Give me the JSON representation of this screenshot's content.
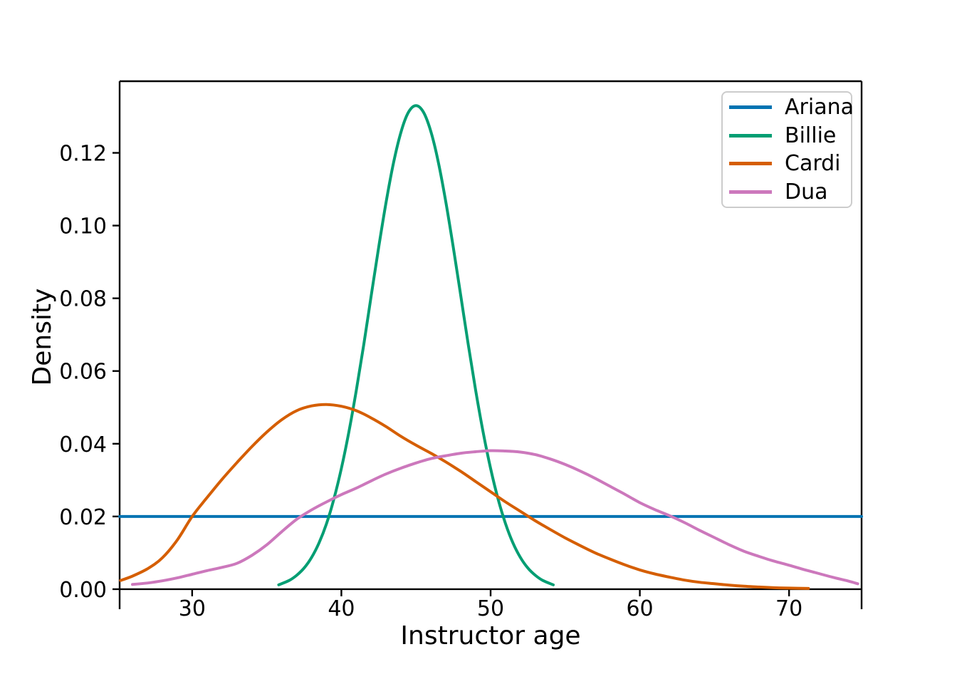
{
  "figure": {
    "background": "#ffffff"
  },
  "chart_data": {
    "type": "line",
    "title": "",
    "xlabel": "Instructor age",
    "ylabel": "Density",
    "xlim": [
      25.14,
      74.86
    ],
    "ylim": [
      -0.0055,
      0.1397
    ],
    "grid": false,
    "legend_position": "upper right",
    "x_ticks": [
      30,
      40,
      50,
      60,
      70
    ],
    "y_ticks": [
      {
        "v": 0.0,
        "label": "0.00"
      },
      {
        "v": 0.02,
        "label": "0.02"
      },
      {
        "v": 0.04,
        "label": "0.04"
      },
      {
        "v": 0.06,
        "label": "0.06"
      },
      {
        "v": 0.08,
        "label": "0.08"
      },
      {
        "v": 0.1,
        "label": "0.10"
      },
      {
        "v": 0.12,
        "label": "0.12"
      }
    ],
    "series": [
      {
        "name": "Ariana",
        "color": "#0173b2",
        "shape": "uniform",
        "points": [
          [
            25.14,
            0.02
          ],
          [
            74.86,
            0.02
          ]
        ]
      },
      {
        "name": "Billie",
        "color": "#029e73",
        "shape": "normal(mean=45, sd=3)",
        "points": [
          [
            35.8,
            0.0012
          ],
          [
            36.5,
            0.0024
          ],
          [
            37,
            0.0038
          ],
          [
            37.5,
            0.0058
          ],
          [
            38,
            0.0087
          ],
          [
            38.5,
            0.0127
          ],
          [
            39,
            0.018
          ],
          [
            39.5,
            0.0248
          ],
          [
            40,
            0.0332
          ],
          [
            40.5,
            0.0432
          ],
          [
            41,
            0.0547
          ],
          [
            41.5,
            0.0673
          ],
          [
            42,
            0.0807
          ],
          [
            42.5,
            0.094
          ],
          [
            43,
            0.1065
          ],
          [
            43.5,
            0.1174
          ],
          [
            44,
            0.1258
          ],
          [
            44.5,
            0.1312
          ],
          [
            45,
            0.133
          ],
          [
            45.5,
            0.1312
          ],
          [
            46,
            0.1258
          ],
          [
            46.5,
            0.1174
          ],
          [
            47,
            0.1065
          ],
          [
            47.5,
            0.094
          ],
          [
            48,
            0.0807
          ],
          [
            48.5,
            0.0673
          ],
          [
            49,
            0.0547
          ],
          [
            49.5,
            0.0432
          ],
          [
            50,
            0.0332
          ],
          [
            50.5,
            0.0248
          ],
          [
            51,
            0.018
          ],
          [
            51.5,
            0.0127
          ],
          [
            52,
            0.0087
          ],
          [
            52.5,
            0.0058
          ],
          [
            53,
            0.0038
          ],
          [
            53.5,
            0.0024
          ],
          [
            54.2,
            0.0012
          ]
        ]
      },
      {
        "name": "Cardi",
        "color": "#d55e00",
        "shape": "right-skewed, mode 39, peak 0.051",
        "points": [
          [
            25.2,
            0.0024
          ],
          [
            26,
            0.0036
          ],
          [
            27,
            0.0056
          ],
          [
            28,
            0.0086
          ],
          [
            29,
            0.0135
          ],
          [
            30,
            0.02
          ],
          [
            31,
            0.0252
          ],
          [
            32,
            0.0302
          ],
          [
            33,
            0.0348
          ],
          [
            34,
            0.0392
          ],
          [
            35,
            0.0432
          ],
          [
            36,
            0.0466
          ],
          [
            37,
            0.0491
          ],
          [
            38,
            0.0504
          ],
          [
            39,
            0.0508
          ],
          [
            40,
            0.0503
          ],
          [
            41,
            0.0491
          ],
          [
            42,
            0.0471
          ],
          [
            43,
            0.0447
          ],
          [
            44,
            0.042
          ],
          [
            45,
            0.0396
          ],
          [
            46,
            0.0374
          ],
          [
            47,
            0.035
          ],
          [
            48,
            0.0324
          ],
          [
            49,
            0.0296
          ],
          [
            50,
            0.0268
          ],
          [
            51,
            0.024
          ],
          [
            52,
            0.0214
          ],
          [
            53,
            0.0188
          ],
          [
            54,
            0.0164
          ],
          [
            55,
            0.0141
          ],
          [
            56,
            0.012
          ],
          [
            57,
            0.01
          ],
          [
            58,
            0.0083
          ],
          [
            59,
            0.0067
          ],
          [
            60,
            0.0053
          ],
          [
            61,
            0.0042
          ],
          [
            62,
            0.0033
          ],
          [
            63,
            0.0025
          ],
          [
            64,
            0.0019
          ],
          [
            65,
            0.0015
          ],
          [
            66,
            0.0011
          ],
          [
            67,
            0.0008
          ],
          [
            68,
            0.0006
          ],
          [
            69,
            0.0004
          ],
          [
            70,
            0.0003
          ],
          [
            71.3,
            0.0002
          ]
        ]
      },
      {
        "name": "Dua",
        "color": "#cc78bc",
        "shape": "broad, mode 50, peak 0.038",
        "points": [
          [
            26,
            0.0013
          ],
          [
            27,
            0.0017
          ],
          [
            28,
            0.0023
          ],
          [
            29,
            0.0031
          ],
          [
            30,
            0.0041
          ],
          [
            31,
            0.0051
          ],
          [
            32,
            0.006
          ],
          [
            33,
            0.0071
          ],
          [
            34,
            0.0093
          ],
          [
            35,
            0.0122
          ],
          [
            36,
            0.0158
          ],
          [
            37,
            0.0192
          ],
          [
            38,
            0.0218
          ],
          [
            39,
            0.024
          ],
          [
            40,
            0.026
          ],
          [
            41,
            0.0278
          ],
          [
            42,
            0.0298
          ],
          [
            43,
            0.0317
          ],
          [
            44,
            0.0333
          ],
          [
            45,
            0.0347
          ],
          [
            46,
            0.0359
          ],
          [
            47,
            0.0367
          ],
          [
            48,
            0.0374
          ],
          [
            49,
            0.0378
          ],
          [
            50,
            0.0381
          ],
          [
            51,
            0.038
          ],
          [
            52,
            0.0377
          ],
          [
            53,
            0.037
          ],
          [
            54,
            0.0358
          ],
          [
            55,
            0.0343
          ],
          [
            56,
            0.0325
          ],
          [
            57,
            0.0305
          ],
          [
            58,
            0.0283
          ],
          [
            59,
            0.0261
          ],
          [
            60,
            0.0238
          ],
          [
            61,
            0.0219
          ],
          [
            62,
            0.0202
          ],
          [
            63,
            0.0183
          ],
          [
            64,
            0.0162
          ],
          [
            65,
            0.0142
          ],
          [
            66,
            0.0122
          ],
          [
            67,
            0.0104
          ],
          [
            68,
            0.009
          ],
          [
            69,
            0.0077
          ],
          [
            70,
            0.0066
          ],
          [
            71,
            0.0054
          ],
          [
            72,
            0.0043
          ],
          [
            73,
            0.0032
          ],
          [
            74,
            0.0022
          ],
          [
            74.6,
            0.0015
          ]
        ]
      }
    ]
  }
}
